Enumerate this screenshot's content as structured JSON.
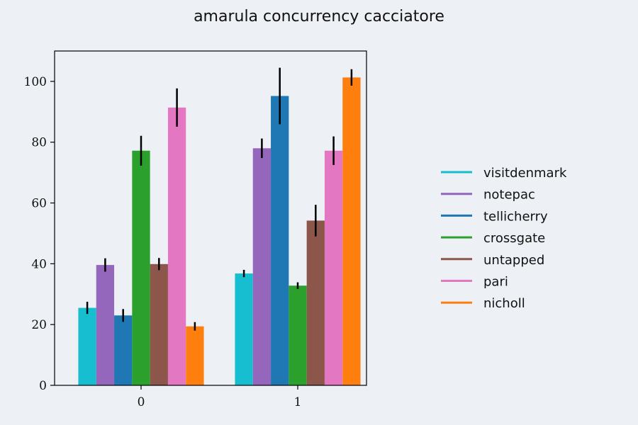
{
  "chart_data": {
    "type": "bar",
    "title": "amarula concurrency cacciatore",
    "xlabel": "",
    "ylabel": "",
    "categories": [
      "0",
      "1"
    ],
    "ylim": [
      0,
      110
    ],
    "yticks": [
      0,
      20,
      40,
      60,
      80,
      100
    ],
    "grid": false,
    "legend_position": "right",
    "series": [
      {
        "name": "visitdenmark",
        "color": "#17becf",
        "values": [
          25.5,
          36.8
        ],
        "errors": [
          2.0,
          1.2
        ]
      },
      {
        "name": "notepac",
        "color": "#9467bd",
        "values": [
          39.6,
          78.0
        ],
        "errors": [
          2.2,
          3.2
        ]
      },
      {
        "name": "tellicherry",
        "color": "#1f77b4",
        "values": [
          23.0,
          95.2
        ],
        "errors": [
          2.1,
          9.3
        ]
      },
      {
        "name": "crossgate",
        "color": "#2ca02c",
        "values": [
          77.2,
          32.8
        ],
        "errors": [
          4.9,
          1.1
        ]
      },
      {
        "name": "untapped",
        "color": "#8c564b",
        "values": [
          39.9,
          54.2
        ],
        "errors": [
          2.0,
          5.2
        ]
      },
      {
        "name": "pari",
        "color": "#e377c2",
        "values": [
          91.4,
          77.2
        ],
        "errors": [
          6.3,
          4.7
        ]
      },
      {
        "name": "nicholl",
        "color": "#ff7f0e",
        "values": [
          19.4,
          101.3
        ],
        "errors": [
          1.4,
          2.7
        ]
      }
    ]
  }
}
